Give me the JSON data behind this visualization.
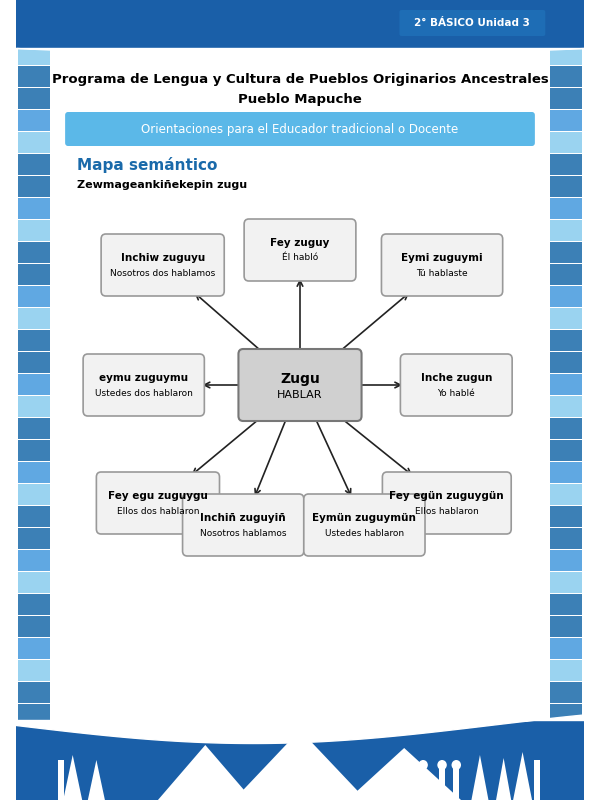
{
  "title_line1": "Programa de Lengua y Cultura de Pueblos Originarios Ancestrales",
  "title_line2": "Pueblo Mapuche",
  "banner_text": "Orientaciones para el Educador tradicional o Docente",
  "banner_color": "#5bb8e8",
  "section_title": "Mapa semántico",
  "section_title_color": "#1a6aaa",
  "subtitle": "Zewmageankiñekepin zugu",
  "badge_text": "2° BÁSICO Unidad 3",
  "badge_bg": "#1E6DB5",
  "badge_text_color": "#ffffff",
  "center_node": {
    "label": "Zugu",
    "sublabel": "HABLAR"
  },
  "nodes": [
    {
      "label": "Inchiw zuguyu",
      "sublabel": "Nosotros dos hablamos"
    },
    {
      "label": "Fey zuguy",
      "sublabel": "Él habló"
    },
    {
      "label": "Eymi zuguymi",
      "sublabel": "Tú hablaste"
    },
    {
      "label": "eymu zuguymu",
      "sublabel": "Ustedes dos hablaron"
    },
    {
      "label": "Inche zugun",
      "sublabel": "Yo hablé"
    },
    {
      "label": "Fey egu zuguygu",
      "sublabel": "Ellos dos hablaron"
    },
    {
      "label": "Fey egün zuguygün",
      "sublabel": "Ellos hablaron"
    },
    {
      "label": "Inchiñ zuguyiñ",
      "sublabel": "Nosotros hablamos"
    },
    {
      "label": "Eymün zuguymün",
      "sublabel": "Ustedes hablaron"
    }
  ],
  "node_box_color": "#f2f2f2",
  "node_box_edge": "#999999",
  "center_box_color": "#d0d0d0",
  "center_box_edge": "#777777",
  "arrow_color": "#222222",
  "bg_color": "#ffffff",
  "bottom_color": "#1a5fa8",
  "top_bar_color": "#1a5fa8",
  "side_border_color": "#4499dd",
  "side_border_light": "#aaccee"
}
